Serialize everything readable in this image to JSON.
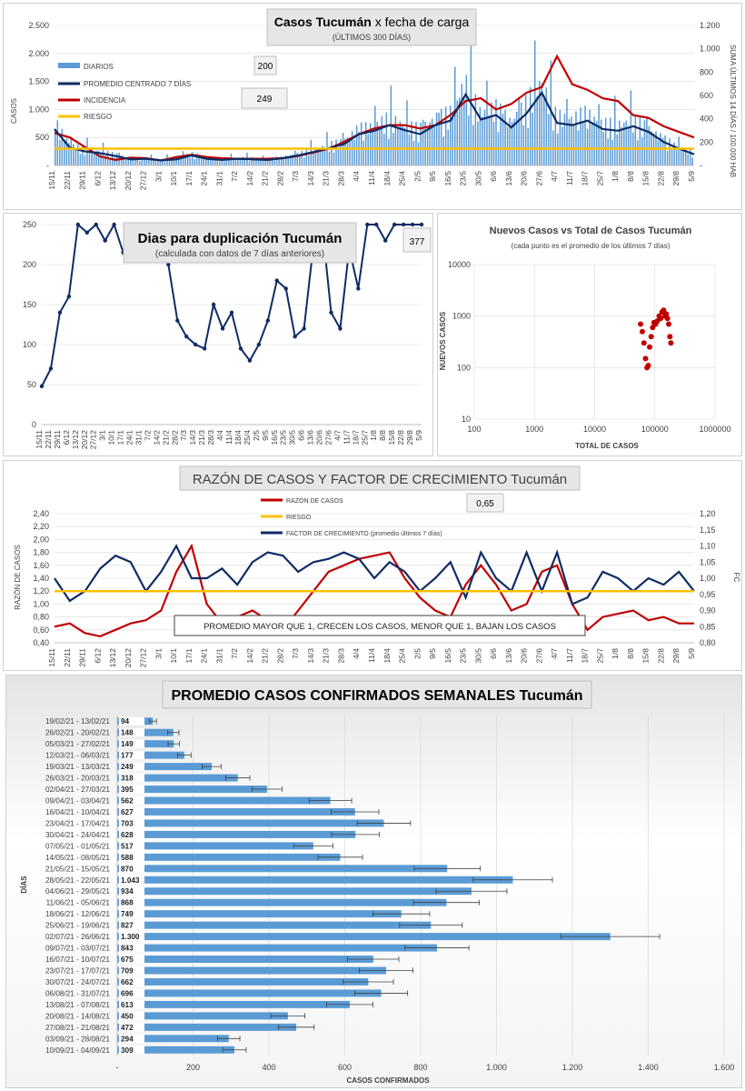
{
  "colors": {
    "bar": "#5b9bd5",
    "navy": "#0f2c64",
    "red": "#c00000",
    "gold": "#ffc000",
    "grid": "#d9d9d9",
    "scatter": "#c00000"
  },
  "dates": [
    "15/11",
    "22/11",
    "29/11",
    "6/12",
    "13/12",
    "20/12",
    "27/12",
    "3/1",
    "10/1",
    "17/1",
    "24/1",
    "31/1",
    "7/2",
    "14/2",
    "21/2",
    "28/2",
    "7/3",
    "14/3",
    "21/3",
    "28/3",
    "4/4",
    "11/4",
    "18/4",
    "25/4",
    "2/5",
    "9/5",
    "16/5",
    "23/5",
    "30/5",
    "6/6",
    "13/6",
    "20/6",
    "27/6",
    "4/7",
    "11/7",
    "18/7",
    "25/7",
    "1/8",
    "8/8",
    "15/8",
    "22/8",
    "29/8",
    "5/9"
  ],
  "chart1": {
    "title_bold": "Casos Tucumán",
    "title_rest": " x fecha de carga",
    "subtitle": "(ÚLTIMOS 300 DÍAS)",
    "ylabel": "CASOS",
    "y2label": "SUMA ÚLTIMOS 14 DÍAS / 100.000 HAB",
    "yticks": [
      "-",
      "500",
      "1.000",
      "1.500",
      "2.000",
      "2.500"
    ],
    "y2ticks": [
      "-",
      "200",
      "400",
      "600",
      "800",
      "1.000",
      "1.200"
    ],
    "legend": [
      "DIARIOS",
      "PROMEDIO CENTRADO 7 DÍAS",
      "INCIDENCIA",
      "RIESGO"
    ],
    "box1": "200",
    "box2": "249",
    "chart_data": {
      "type": "bar+line",
      "ylim": [
        0,
        2500
      ],
      "y2lim": [
        0,
        1200
      ],
      "riesgo": 300,
      "promedio": [
        650,
        320,
        250,
        220,
        170,
        110,
        120,
        90,
        110,
        180,
        120,
        100,
        120,
        110,
        100,
        130,
        180,
        240,
        310,
        380,
        560,
        620,
        720,
        630,
        560,
        720,
        800,
        1270,
        820,
        900,
        680,
        930,
        1300,
        760,
        720,
        800,
        650,
        620,
        700,
        600,
        420,
        300,
        200
      ],
      "incidencia": [
        580,
        500,
        330,
        160,
        100,
        140,
        130,
        90,
        150,
        190,
        150,
        130,
        120,
        120,
        120,
        130,
        170,
        230,
        300,
        420,
        560,
        660,
        720,
        720,
        660,
        720,
        900,
        1150,
        1200,
        1000,
        1100,
        1300,
        1400,
        1950,
        1450,
        1350,
        1200,
        1150,
        900,
        850,
        700,
        600,
        500
      ]
    }
  },
  "chart2": {
    "title": "Dias para duplicación Tucumán",
    "subtitle": "(calculada con datos de 7 días anteriores)",
    "box": "377",
    "yticks": [
      "0",
      "50",
      "100",
      "150",
      "200",
      "250"
    ],
    "chart_data": {
      "type": "line",
      "ylim": [
        0,
        250
      ],
      "values": [
        48,
        70,
        140,
        160,
        250,
        240,
        250,
        230,
        250,
        215,
        250,
        240,
        250,
        220,
        200,
        130,
        110,
        100,
        95,
        150,
        120,
        140,
        95,
        80,
        100,
        130,
        180,
        170,
        110,
        120,
        220,
        250,
        140,
        120,
        220,
        170,
        250,
        250,
        230,
        250,
        250,
        250,
        250
      ]
    }
  },
  "chart3": {
    "title": "Nuevos Casos vs Total de Casos Tucumán",
    "subtitle": "(cada punto es el promedio de los últimos 7 días)",
    "ylabel": "NUEVOS CASOS",
    "xlabel": "TOTAL DE CASOS",
    "xticks": [
      "100",
      "1000",
      "10000",
      "100000",
      "1000000"
    ],
    "yticks": [
      "10",
      "100",
      "1000",
      "10000"
    ],
    "chart_data": {
      "type": "scatter",
      "xscale": "log",
      "yscale": "log",
      "xlim": [
        100,
        1000000
      ],
      "ylim": [
        10,
        10000
      ],
      "points": [
        [
          58000,
          700
        ],
        [
          62000,
          500
        ],
        [
          66000,
          300
        ],
        [
          70000,
          150
        ],
        [
          74000,
          100
        ],
        [
          78000,
          110
        ],
        [
          82000,
          250
        ],
        [
          87000,
          400
        ],
        [
          92000,
          600
        ],
        [
          97000,
          750
        ],
        [
          103000,
          700
        ],
        [
          110000,
          800
        ],
        [
          118000,
          1000
        ],
        [
          125000,
          900
        ],
        [
          132000,
          1200
        ],
        [
          140000,
          1300
        ],
        [
          148000,
          1000
        ],
        [
          155000,
          1100
        ],
        [
          162000,
          900
        ],
        [
          170000,
          700
        ],
        [
          178000,
          400
        ],
        [
          185000,
          300
        ]
      ]
    }
  },
  "chart4": {
    "title": "RAZÓN DE CASOS Y FACTOR DE CRECIMIENTO Tucumán",
    "box": "0,65",
    "ylabel": "RAZÓN DE CASOS",
    "y2label": "FC",
    "legend": [
      "RAZÓN DE CASOS",
      "RIESGO",
      "FACTOR DE CRECIMIENTO (promedio últimos 7 días)"
    ],
    "note": "PROMEDIO MAYOR QUE 1, CRECEN LOS CASOS, MENOR QUE 1, BAJAN LOS CASOS",
    "yticks": [
      "0,40",
      "0,60",
      "0,80",
      "1,00",
      "1,20",
      "1,40",
      "1,60",
      "1,80",
      "2,00",
      "2,20",
      "2,40"
    ],
    "y2ticks": [
      "0,80",
      "0,85",
      "0,90",
      "0,95",
      "1,00",
      "1,05",
      "1,10",
      "1,15",
      "1,20"
    ],
    "chart_data": {
      "type": "line",
      "ylim": [
        0.4,
        2.4
      ],
      "y2lim": [
        0.8,
        1.2
      ],
      "riesgo": 1.2,
      "razon": [
        0.65,
        0.7,
        0.55,
        0.5,
        0.6,
        0.7,
        0.75,
        0.9,
        1.5,
        1.9,
        1.0,
        0.7,
        0.8,
        0.9,
        0.75,
        0.6,
        0.9,
        1.2,
        1.5,
        1.6,
        1.7,
        1.75,
        1.8,
        1.4,
        1.1,
        0.9,
        0.8,
        1.3,
        1.6,
        1.3,
        0.9,
        1.0,
        1.5,
        1.6,
        1.0,
        0.6,
        0.8,
        0.85,
        0.9,
        0.75,
        0.8,
        0.7,
        0.7
      ],
      "fc": [
        1.0,
        0.93,
        0.96,
        1.03,
        1.07,
        1.05,
        0.96,
        1.02,
        1.1,
        1.0,
        1.0,
        1.03,
        0.98,
        1.05,
        1.08,
        1.07,
        1.02,
        1.05,
        1.06,
        1.08,
        1.06,
        1.0,
        1.05,
        1.02,
        0.96,
        1.0,
        1.05,
        0.94,
        1.08,
        1.0,
        0.96,
        1.08,
        0.96,
        1.08,
        0.92,
        0.94,
        1.02,
        1.0,
        0.96,
        1.0,
        0.98,
        1.02,
        0.96
      ]
    }
  },
  "chart5": {
    "title": "PROMEDIO CASOS CONFIRMADOS SEMANALES Tucumán",
    "ylabel": "DÍAS",
    "xlabel": "CASOS CONFIRMADOS",
    "xticks": [
      "-",
      "200",
      "400",
      "600",
      "800",
      "1.000",
      "1.200",
      "1.400",
      "1.600"
    ],
    "chart_data": {
      "type": "bar",
      "orientation": "horizontal",
      "xlim": [
        0,
        1600
      ],
      "categories": [
        "19/02/21 - 13/02/21",
        "26/02/21 - 20/02/21",
        "05/03/21 - 27/02/21",
        "12/03/21 - 06/03/21",
        "19/03/21 - 13/03/21",
        "26/03/21 - 20/03/21",
        "02/04/21 - 27/03/21",
        "09/04/21 - 03/04/21",
        "16/04/21 - 10/04/21",
        "23/04/21 - 17/04/21",
        "30/04/21 - 24/04/21",
        "07/05/21 - 01/05/21",
        "14/05/21 - 08/05/21",
        "21/05/21 - 15/05/21",
        "28/05/21 - 22/05/21",
        "04/06/21 - 29/05/21",
        "11/06/21 - 05/06/21",
        "18/06/21 - 12/06/21",
        "25/06/21 - 19/06/21",
        "02/07/21 - 26/06/21",
        "09/07/21 - 03/07/21",
        "16/07/21 - 10/07/21",
        "23/07/21 - 17/07/21",
        "30/07/21 - 24/07/21",
        "06/08/21 - 31/07/21",
        "13/08/21 - 07/08/21",
        "20/08/21 - 14/08/21",
        "27/08/21 - 21/08/21",
        "03/09/21 - 28/08/21",
        "10/09/21 - 04/09/21"
      ],
      "values": [
        94,
        148,
        149,
        177,
        249,
        318,
        395,
        562,
        627,
        703,
        628,
        517,
        588,
        870,
        1043,
        934,
        868,
        749,
        827,
        1300,
        843,
        675,
        709,
        662,
        696,
        613,
        450,
        472,
        294,
        309
      ],
      "labels": [
        "94",
        "148",
        "149",
        "177",
        "249",
        "318",
        "395",
        "562",
        "627",
        "703",
        "628",
        "517",
        "588",
        "870",
        "1.043",
        "934",
        "868",
        "749",
        "827",
        "1.300",
        "843",
        "675",
        "709",
        "662",
        "696",
        "613",
        "450",
        "472",
        "294",
        "309"
      ]
    }
  }
}
